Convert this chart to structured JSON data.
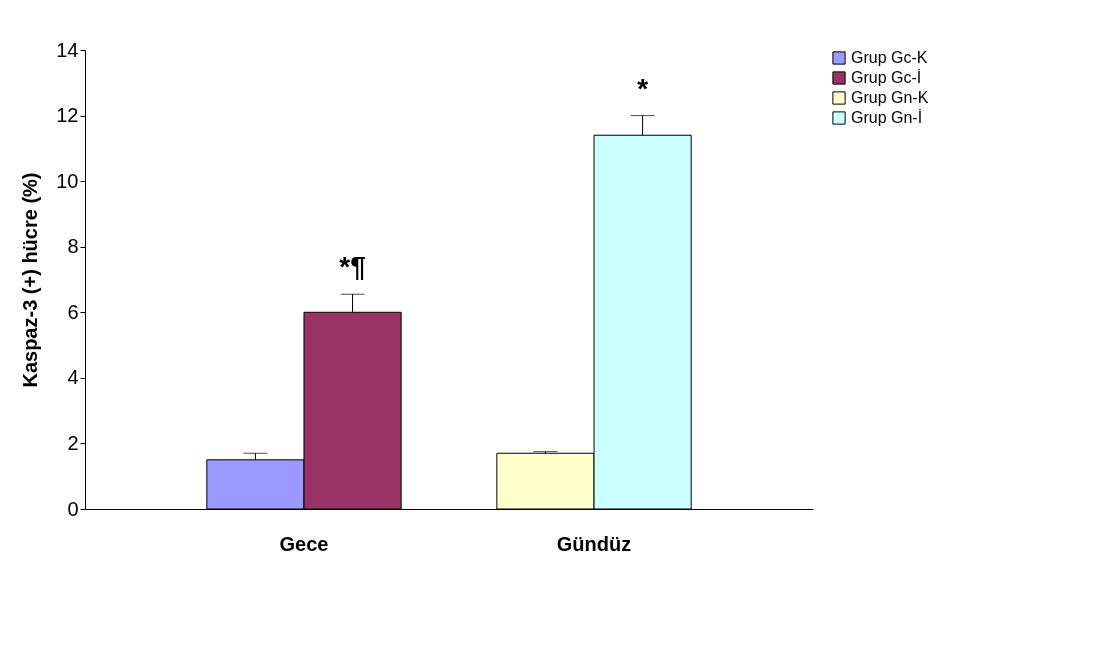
{
  "chart_data": {
    "type": "bar",
    "ylabel": "Kaspaz-3 (+) hücre (%)",
    "categories": [
      "Gece",
      "Gündüz"
    ],
    "series": [
      {
        "name": "Grup Gc-K",
        "color": "#9999ff",
        "values": [
          1.5,
          null
        ],
        "errors": [
          [
            1.5,
            1.7
          ],
          null
        ]
      },
      {
        "name": "Grup Gc-İ",
        "color": "#993366",
        "values": [
          6.0,
          null
        ],
        "errors": [
          [
            6.0,
            6.55
          ],
          null
        ]
      },
      {
        "name": "Grup Gn-K",
        "color": "#ffffcc",
        "values": [
          null,
          1.7
        ],
        "errors": [
          null,
          [
            1.7,
            1.75
          ]
        ]
      },
      {
        "name": "Grup Gn-İ",
        "color": "#ccffff",
        "values": [
          null,
          11.4
        ],
        "errors": [
          null,
          [
            11.4,
            12.0
          ]
        ]
      }
    ],
    "ylim": [
      0,
      14
    ],
    "yticks": [
      0,
      2,
      4,
      6,
      8,
      10,
      12,
      14
    ],
    "grid": false,
    "legend": "right",
    "annotations": [
      "*¶",
      "*"
    ]
  }
}
